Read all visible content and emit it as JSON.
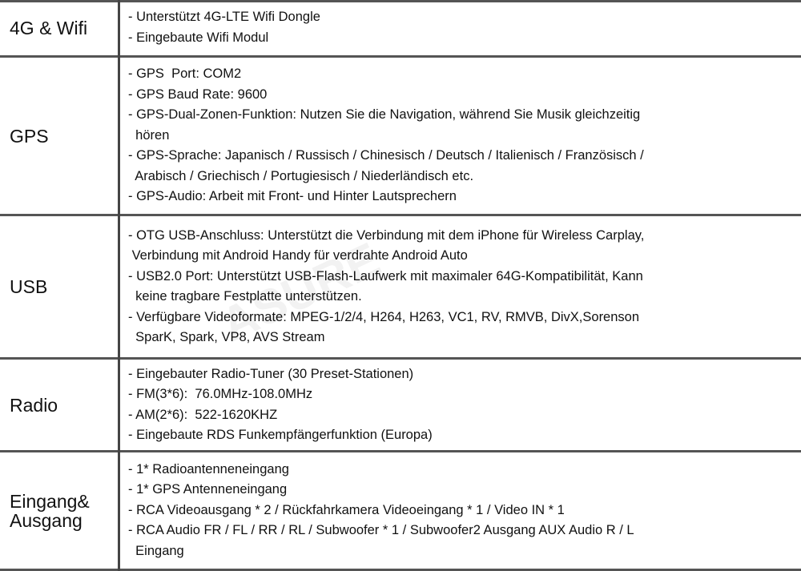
{
  "rows": [
    {
      "label": [
        "4G & Wifi"
      ],
      "lines": [
        "- Unterstützt 4G-LTE Wifi Dongle",
        "- Eingebaute Wifi Modul"
      ]
    },
    {
      "label": [
        "GPS"
      ],
      "lines": [
        "- GPS  Port: COM2",
        "- GPS Baud Rate: 9600",
        "- GPS-Dual-Zonen-Funktion: Nutzen Sie die Navigation, während Sie Musik gleichzeitig",
        "  hören",
        "- GPS-Sprache: Japanisch / Russisch / Chinesisch / Deutsch / Italienisch / Französisch /",
        "  Arabisch / Griechisch / Portugiesisch / Niederländisch etc.",
        "- GPS-Audio: Arbeit mit Front- und Hinter Lautsprechern"
      ]
    },
    {
      "label": [
        "USB"
      ],
      "lines": [
        "- OTG USB-Anschluss: Unterstützt die Verbindung mit dem iPhone für Wireless Carplay,",
        " Verbindung mit Android Handy für verdrahte Android Auto",
        "- USB2.0 Port: Unterstützt USB-Flash-Laufwerk mit maximaler 64G-Kompatibilität, Kann",
        "  keine tragbare Festplatte unterstützen.",
        "- Verfügbare Videoformate: MPEG-1/2/4, H264, H263, VC1, RV, RMVB, DivX,Sorenson",
        "  SparK, Spark, VP8, AVS Stream"
      ]
    },
    {
      "label": [
        "Radio"
      ],
      "lines": [
        "- Eingebauter Radio-Tuner (30 Preset-Stationen)",
        "- FM(3*6):  76.0MHz-108.0MHz",
        "- AM(2*6):  522-1620KHZ",
        "- Eingebaute RDS Funkempfängerfunktion (Europa)"
      ]
    },
    {
      "label": [
        "Eingang&",
        "Ausgang"
      ],
      "lines": [
        "- 1* Radioantenneneingang",
        "- 1* GPS Antenneneingang",
        "- RCA Videoausgang * 2 / Rückfahrkamera Videoeingang * 1 / Video IN * 1",
        "- RCA Audio FR / FL / RR / RL / Subwoofer * 1 / Subwoofer2 Ausgang AUX Audio R / L",
        "  Eingang"
      ]
    }
  ],
  "watermark": "ASURE"
}
